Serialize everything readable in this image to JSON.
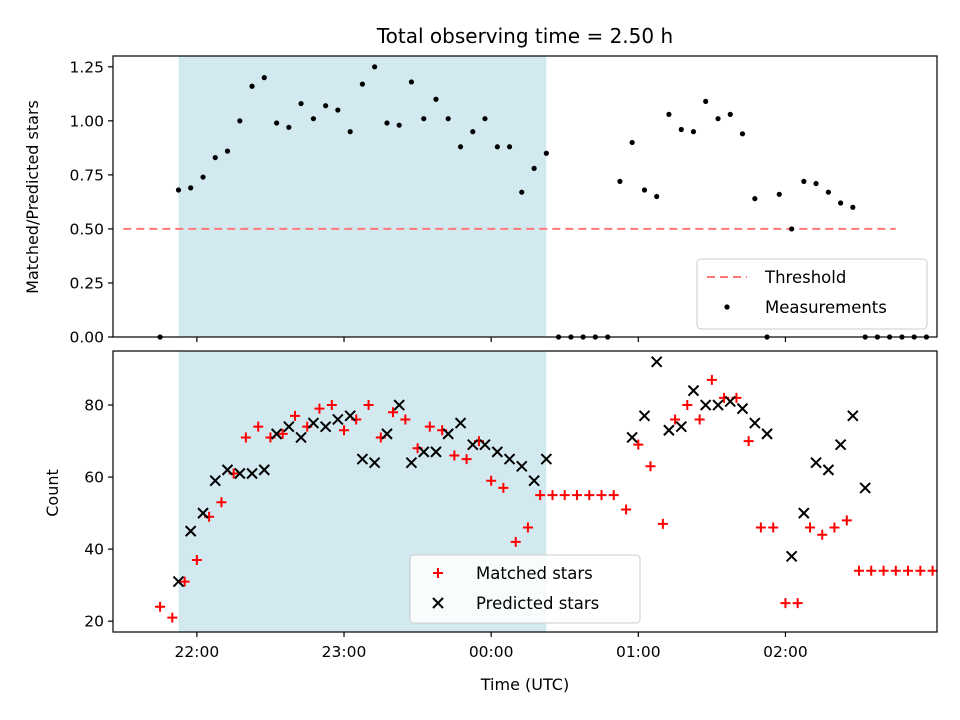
{
  "chart_data": [
    {
      "type": "scatter",
      "title": "Total observing time = 2.50 h",
      "xlabel": "",
      "ylabel": "Matched/Predicted stars",
      "ylim": [
        0,
        1.3
      ],
      "yticks": [
        0,
        0.25,
        0.5,
        0.75,
        1.0,
        1.25
      ],
      "ytick_labels": [
        "0.00",
        "0.25",
        "0.50",
        "0.75",
        "1.00",
        "1.25"
      ],
      "shaded_span": {
        "x0": 21.875,
        "x1": 24.375,
        "color": "#d3e9f0"
      },
      "threshold": {
        "name": "Threshold",
        "value": 0.5,
        "x0": 21.5,
        "x1": 26.75,
        "color": "#ff7777"
      },
      "legend_position": "lower right",
      "series": [
        {
          "name": "Measurements",
          "marker": "dot",
          "color": "#000000",
          "points": [
            [
              21.75,
              0.0
            ],
            [
              21.875,
              0.68
            ],
            [
              21.958,
              0.69
            ],
            [
              22.042,
              0.74
            ],
            [
              22.125,
              0.83
            ],
            [
              22.208,
              0.86
            ],
            [
              22.292,
              1.0
            ],
            [
              22.375,
              1.16
            ],
            [
              22.458,
              1.2
            ],
            [
              22.542,
              0.99
            ],
            [
              22.625,
              0.97
            ],
            [
              22.708,
              1.08
            ],
            [
              22.792,
              1.01
            ],
            [
              22.875,
              1.07
            ],
            [
              22.958,
              1.05
            ],
            [
              23.042,
              0.95
            ],
            [
              23.125,
              1.17
            ],
            [
              23.208,
              1.25
            ],
            [
              23.292,
              0.99
            ],
            [
              23.375,
              0.98
            ],
            [
              23.458,
              1.18
            ],
            [
              23.542,
              1.01
            ],
            [
              23.625,
              1.1
            ],
            [
              23.708,
              1.01
            ],
            [
              23.792,
              0.88
            ],
            [
              23.875,
              0.95
            ],
            [
              23.958,
              1.01
            ],
            [
              24.042,
              0.88
            ],
            [
              24.125,
              0.88
            ],
            [
              24.208,
              0.67
            ],
            [
              24.292,
              0.78
            ],
            [
              24.375,
              0.85
            ],
            [
              24.458,
              0.0
            ],
            [
              24.542,
              0.0
            ],
            [
              24.625,
              0.0
            ],
            [
              24.708,
              0.0
            ],
            [
              24.792,
              0.0
            ],
            [
              24.875,
              0.72
            ],
            [
              24.958,
              0.9
            ],
            [
              25.042,
              0.68
            ],
            [
              25.125,
              0.65
            ],
            [
              25.208,
              1.03
            ],
            [
              25.292,
              0.96
            ],
            [
              25.375,
              0.95
            ],
            [
              25.458,
              1.09
            ],
            [
              25.542,
              1.01
            ],
            [
              25.625,
              1.03
            ],
            [
              25.708,
              0.94
            ],
            [
              25.792,
              0.64
            ],
            [
              25.875,
              0.0
            ],
            [
              25.958,
              0.66
            ],
            [
              26.042,
              0.5
            ],
            [
              26.125,
              0.72
            ],
            [
              26.208,
              0.71
            ],
            [
              26.292,
              0.67
            ],
            [
              26.375,
              0.62
            ],
            [
              26.458,
              0.6
            ],
            [
              26.542,
              0.0
            ],
            [
              26.625,
              0.0
            ],
            [
              26.708,
              0.0
            ],
            [
              26.792,
              0.0
            ],
            [
              26.875,
              0.0
            ],
            [
              26.958,
              0.0
            ]
          ]
        }
      ]
    },
    {
      "type": "scatter",
      "title": "",
      "xlabel": "Time (UTC)",
      "ylabel": "Count",
      "ylim": [
        17,
        95
      ],
      "yticks": [
        20,
        40,
        60,
        80
      ],
      "xlim": [
        21.43,
        27.03
      ],
      "xticks": [
        22,
        23,
        24,
        25,
        26
      ],
      "xtick_labels": [
        "22:00",
        "23:00",
        "00:00",
        "01:00",
        "02:00"
      ],
      "shaded_span": {
        "x0": 21.875,
        "x1": 24.375,
        "color": "#d3e9f0"
      },
      "legend_position": "lower center",
      "series": [
        {
          "name": "Matched stars",
          "marker": "plus",
          "color": "#ff0000",
          "points": [
            [
              21.75,
              24
            ],
            [
              21.833,
              21
            ],
            [
              21.917,
              31
            ],
            [
              22.0,
              37
            ],
            [
              22.083,
              49
            ],
            [
              22.167,
              53
            ],
            [
              22.25,
              61
            ],
            [
              22.333,
              71
            ],
            [
              22.417,
              74
            ],
            [
              22.5,
              71
            ],
            [
              22.583,
              72
            ],
            [
              22.667,
              77
            ],
            [
              22.75,
              74
            ],
            [
              22.833,
              79
            ],
            [
              22.917,
              80
            ],
            [
              23.0,
              73
            ],
            [
              23.083,
              76
            ],
            [
              23.167,
              80
            ],
            [
              23.25,
              71
            ],
            [
              23.333,
              78
            ],
            [
              23.417,
              76
            ],
            [
              23.5,
              68
            ],
            [
              23.583,
              74
            ],
            [
              23.667,
              73
            ],
            [
              23.75,
              66
            ],
            [
              23.833,
              65
            ],
            [
              23.917,
              70
            ],
            [
              24.0,
              59
            ],
            [
              24.083,
              57
            ],
            [
              24.167,
              42
            ],
            [
              24.25,
              46
            ],
            [
              24.333,
              55
            ],
            [
              24.417,
              55
            ],
            [
              24.5,
              55
            ],
            [
              24.583,
              55
            ],
            [
              24.667,
              55
            ],
            [
              24.75,
              55
            ],
            [
              24.833,
              55
            ],
            [
              24.917,
              51
            ],
            [
              25.0,
              69
            ],
            [
              25.083,
              63
            ],
            [
              25.167,
              47
            ],
            [
              25.25,
              76
            ],
            [
              25.333,
              80
            ],
            [
              25.417,
              76
            ],
            [
              25.5,
              87
            ],
            [
              25.583,
              82
            ],
            [
              25.667,
              82
            ],
            [
              25.75,
              70
            ],
            [
              25.833,
              46
            ],
            [
              25.917,
              46
            ],
            [
              26.0,
              25
            ],
            [
              26.083,
              25
            ],
            [
              26.167,
              46
            ],
            [
              26.25,
              44
            ],
            [
              26.333,
              46
            ],
            [
              26.417,
              48
            ],
            [
              26.5,
              34
            ],
            [
              26.583,
              34
            ],
            [
              26.667,
              34
            ],
            [
              26.75,
              34
            ],
            [
              26.833,
              34
            ],
            [
              26.917,
              34
            ],
            [
              27.0,
              34
            ]
          ]
        },
        {
          "name": "Predicted stars",
          "marker": "x",
          "color": "#000000",
          "points": [
            [
              21.875,
              31
            ],
            [
              21.958,
              45
            ],
            [
              22.042,
              50
            ],
            [
              22.125,
              59
            ],
            [
              22.208,
              62
            ],
            [
              22.292,
              61
            ],
            [
              22.375,
              61
            ],
            [
              22.458,
              62
            ],
            [
              22.542,
              72
            ],
            [
              22.625,
              74
            ],
            [
              22.708,
              71
            ],
            [
              22.792,
              75
            ],
            [
              22.875,
              74
            ],
            [
              22.958,
              76
            ],
            [
              23.042,
              77
            ],
            [
              23.125,
              65
            ],
            [
              23.208,
              64
            ],
            [
              23.292,
              72
            ],
            [
              23.375,
              80
            ],
            [
              23.458,
              64
            ],
            [
              23.542,
              67
            ],
            [
              23.625,
              67
            ],
            [
              23.708,
              72
            ],
            [
              23.792,
              75
            ],
            [
              23.875,
              69
            ],
            [
              23.958,
              69
            ],
            [
              24.042,
              67
            ],
            [
              24.125,
              65
            ],
            [
              24.208,
              63
            ],
            [
              24.292,
              59
            ],
            [
              24.375,
              65
            ],
            [
              24.958,
              71
            ],
            [
              25.042,
              77
            ],
            [
              25.125,
              92
            ],
            [
              25.208,
              73
            ],
            [
              25.292,
              74
            ],
            [
              25.375,
              84
            ],
            [
              25.458,
              80
            ],
            [
              25.542,
              80
            ],
            [
              25.625,
              81
            ],
            [
              25.708,
              79
            ],
            [
              25.792,
              75
            ],
            [
              25.875,
              72
            ],
            [
              26.042,
              38
            ],
            [
              26.125,
              50
            ],
            [
              26.208,
              64
            ],
            [
              26.292,
              62
            ],
            [
              26.375,
              69
            ],
            [
              26.458,
              77
            ],
            [
              26.542,
              57
            ]
          ]
        }
      ]
    }
  ]
}
